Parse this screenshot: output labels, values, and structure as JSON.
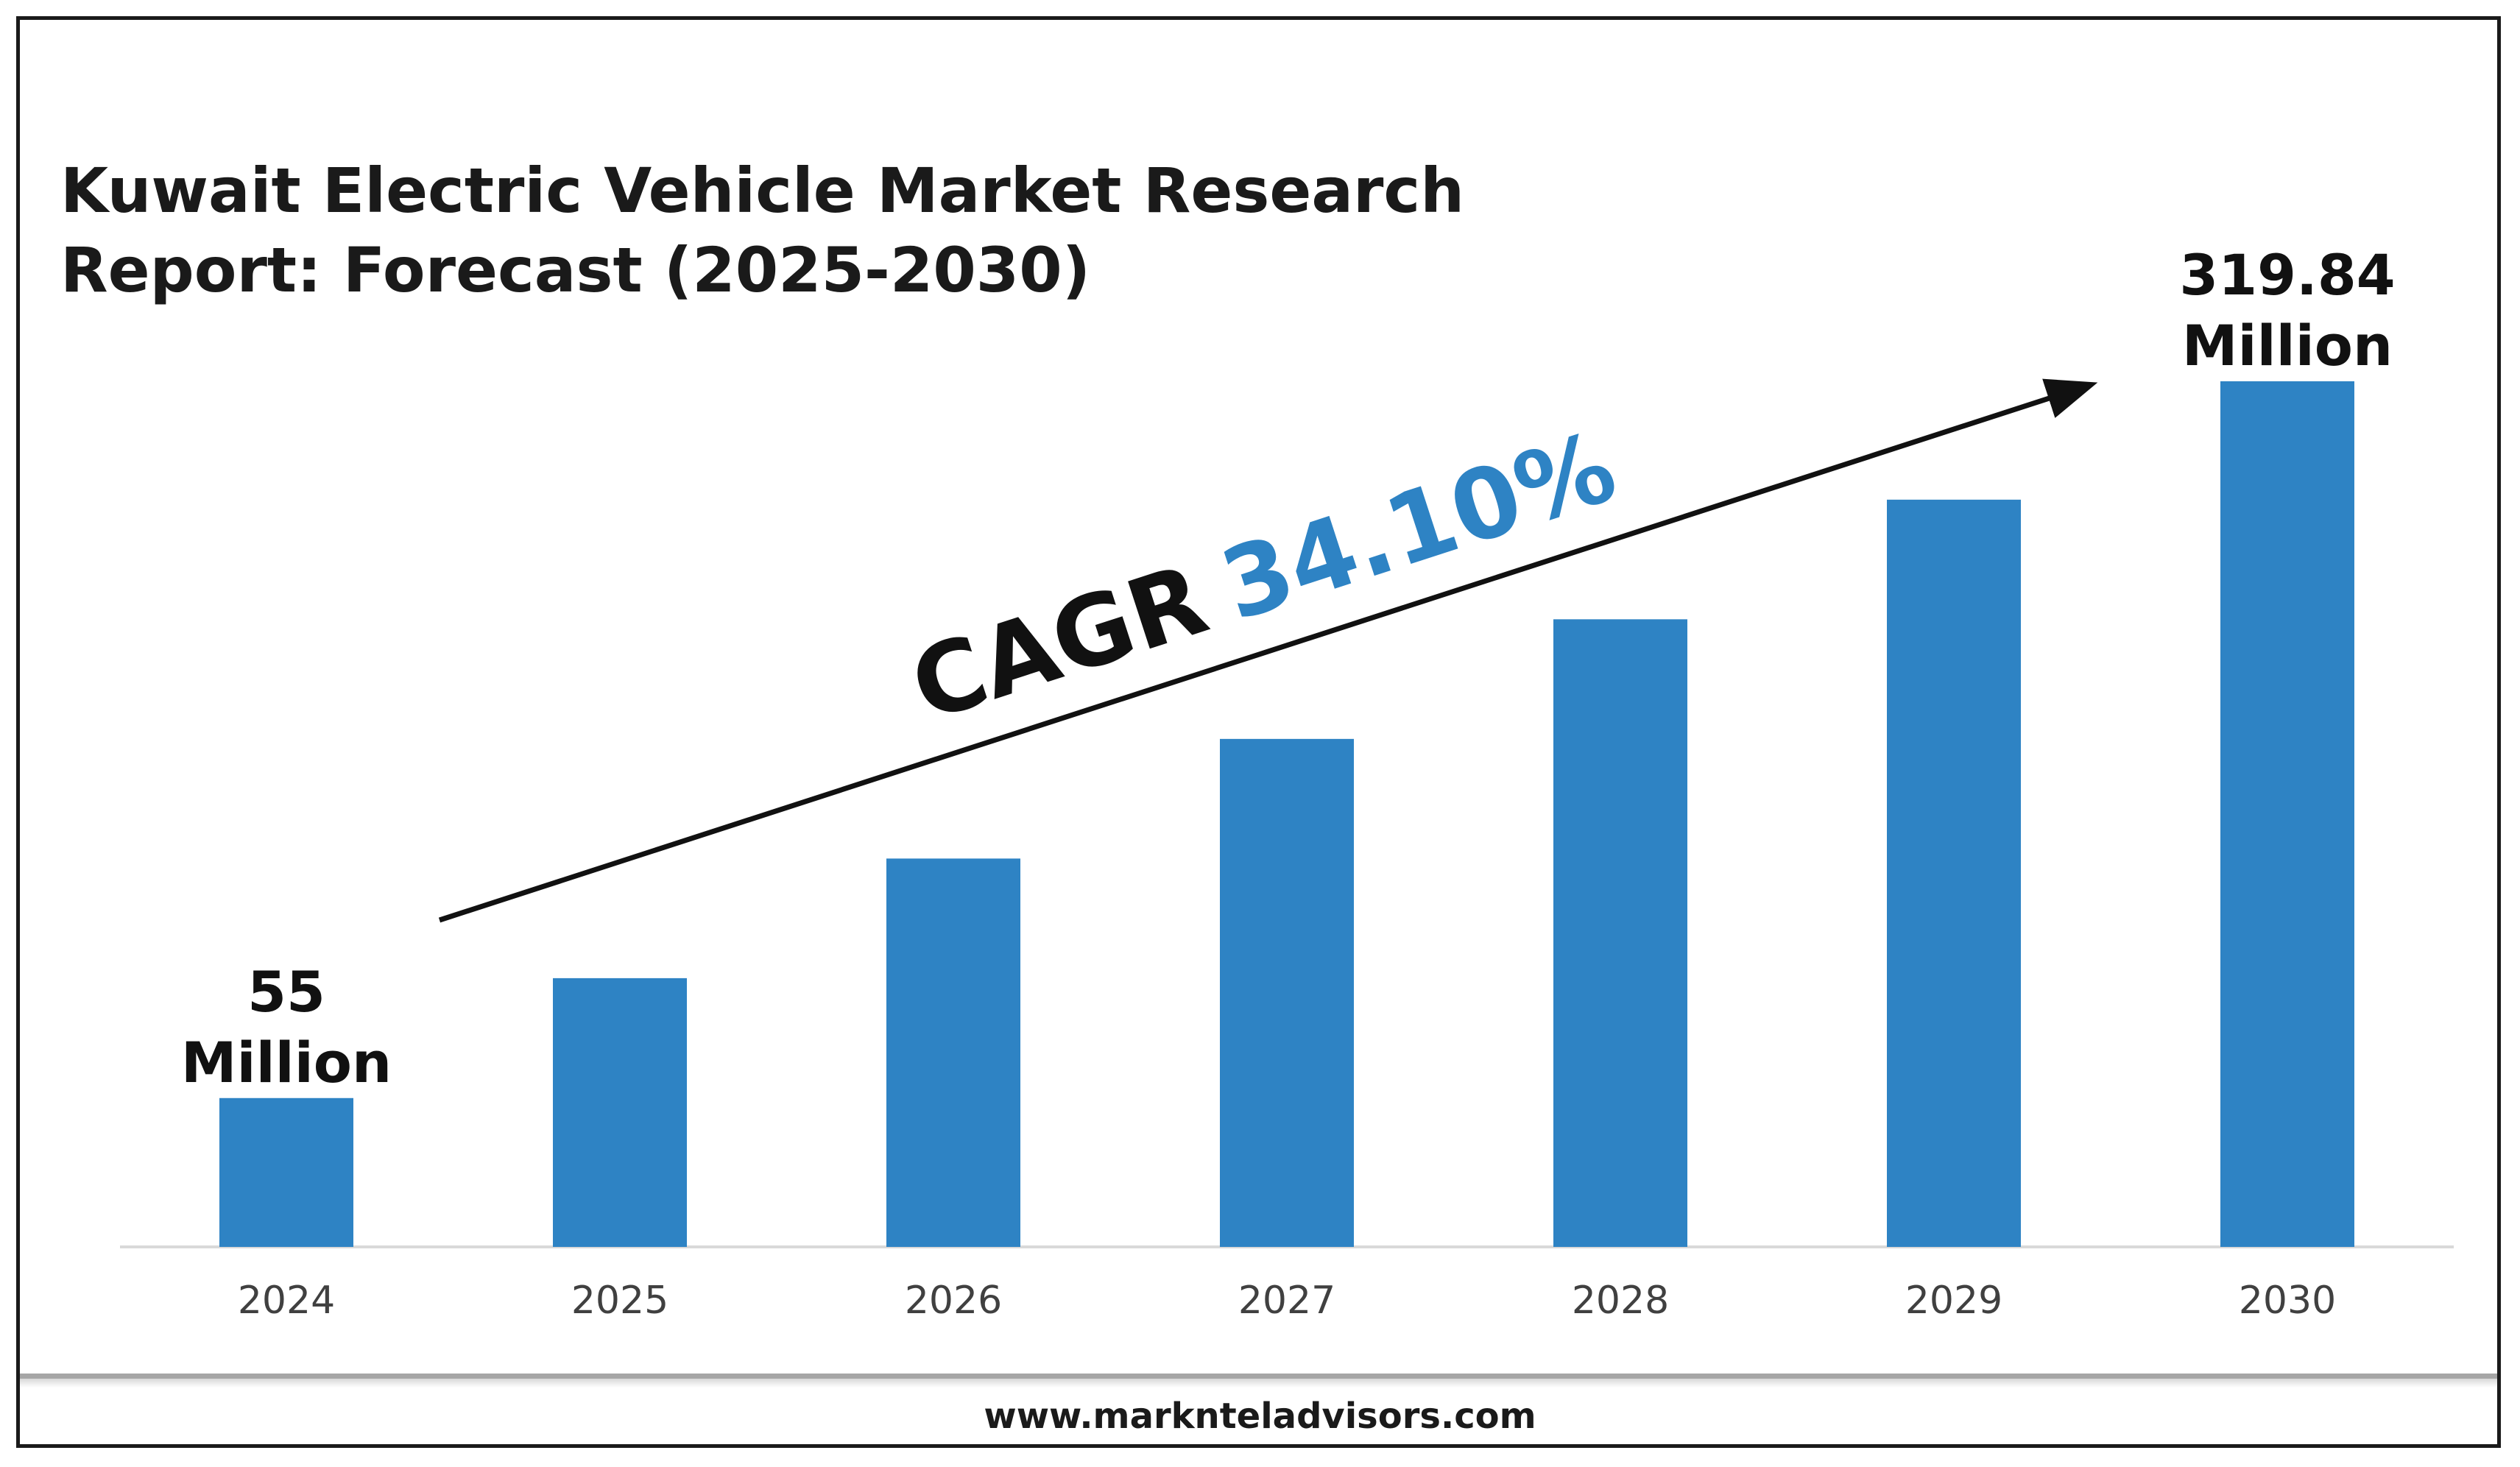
{
  "chart_data": {
    "type": "bar",
    "title_lines": [
      "Kuwait Electric Vehicle Market Research",
      "Report: Forecast (2025-2030)"
    ],
    "categories": [
      "2024",
      "2025",
      "2026",
      "2027",
      "2028",
      "2029",
      "2030"
    ],
    "values": [
      55,
      99.3,
      143.5,
      187.7,
      231.9,
      276.1,
      319.84
    ],
    "units": "Million",
    "ylim": [
      0,
      319.84
    ],
    "bar_color": "#2e83c4",
    "grid": false,
    "labeled_points": [
      {
        "category": "2024",
        "value_text": "55",
        "unit_text": "Million"
      },
      {
        "category": "2030",
        "value_text": "319.84",
        "unit_text": "Million"
      }
    ],
    "annotation": {
      "prefix": "CAGR",
      "value": "34.10%",
      "prefix_color": "#111111",
      "value_color": "#2e83c4"
    }
  },
  "footer": {
    "website": "www.marknteladvisors.com"
  }
}
